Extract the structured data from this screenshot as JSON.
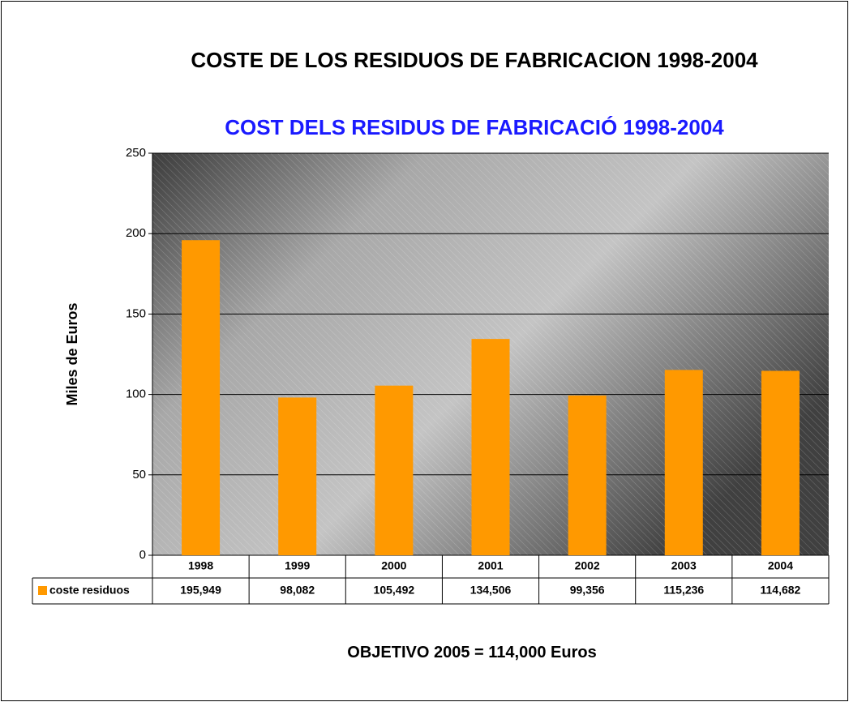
{
  "chart_data": {
    "type": "bar",
    "title": "COSTE DE LOS RESIDUOS DE FABRICACION 1998-2004",
    "subtitle": "COST DELS RESIDUS DE FABRICACIÓ 1998-2004",
    "y_label": "Miles de Euros",
    "annotation": "OBJETIVO 2005 = 114,000 Euros",
    "categories": [
      "1998",
      "1999",
      "2000",
      "2001",
      "2002",
      "2003",
      "2004"
    ],
    "series": [
      {
        "name": "coste residuos",
        "color": "#ff9900",
        "values": [
          195.949,
          98.082,
          105.492,
          134.506,
          99.356,
          115.236,
          114.682
        ],
        "value_labels": [
          "195,949",
          "98,082",
          "105,492",
          "134,506",
          "99,356",
          "115,236",
          "114,682"
        ]
      }
    ],
    "ylim": [
      0,
      250
    ],
    "yticks": [
      0,
      50,
      100,
      150,
      200,
      250
    ],
    "grid": true
  }
}
